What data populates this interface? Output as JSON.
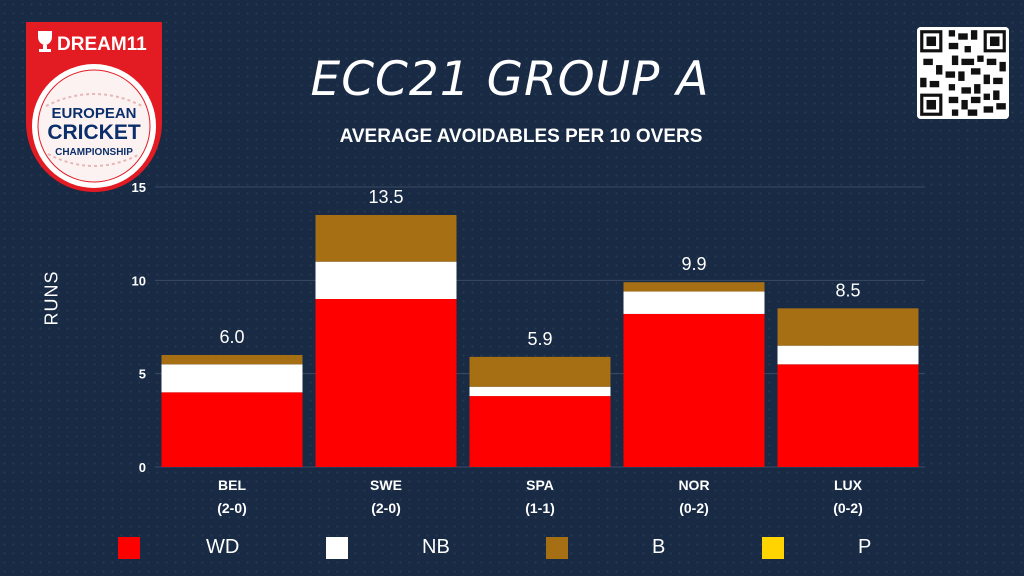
{
  "logo": {
    "brand": "DREAM11",
    "line1": "EUROPEAN",
    "line2": "CRICKET",
    "line3": "CHAMPIONSHIP"
  },
  "title": "ECC21 GROUP A",
  "subtitle": "AVERAGE AVOIDABLES PER 10 OVERS",
  "colors": {
    "background": "#182a44",
    "WD": "#ff0000",
    "NB": "#ffffff",
    "B": "#a66f14",
    "P": "#ffd400"
  },
  "chart_data": {
    "type": "bar",
    "stacked": true,
    "ylabel": "RUNS",
    "ylim": [
      0,
      15
    ],
    "yticks": [
      0,
      5,
      10,
      15
    ],
    "grid": true,
    "legend_position": "bottom",
    "categories": [
      "BEL",
      "SWE",
      "SPA",
      "NOR",
      "LUX"
    ],
    "records": [
      "(2-0)",
      "(2-0)",
      "(1-1)",
      "(0-2)",
      "(0-2)"
    ],
    "totals": [
      "6.0",
      "13.5",
      "5.9",
      "9.9",
      "8.5"
    ],
    "series": [
      {
        "name": "WD",
        "color": "#ff0000",
        "values": [
          4.0,
          9.0,
          3.8,
          8.2,
          5.5
        ]
      },
      {
        "name": "NB",
        "color": "#ffffff",
        "values": [
          1.5,
          2.0,
          0.5,
          1.2,
          1.0
        ]
      },
      {
        "name": "B",
        "color": "#a66f14",
        "values": [
          0.5,
          2.5,
          1.6,
          0.5,
          2.0
        ]
      },
      {
        "name": "P",
        "color": "#ffd400",
        "values": [
          0,
          0,
          0,
          0,
          0
        ]
      }
    ]
  }
}
